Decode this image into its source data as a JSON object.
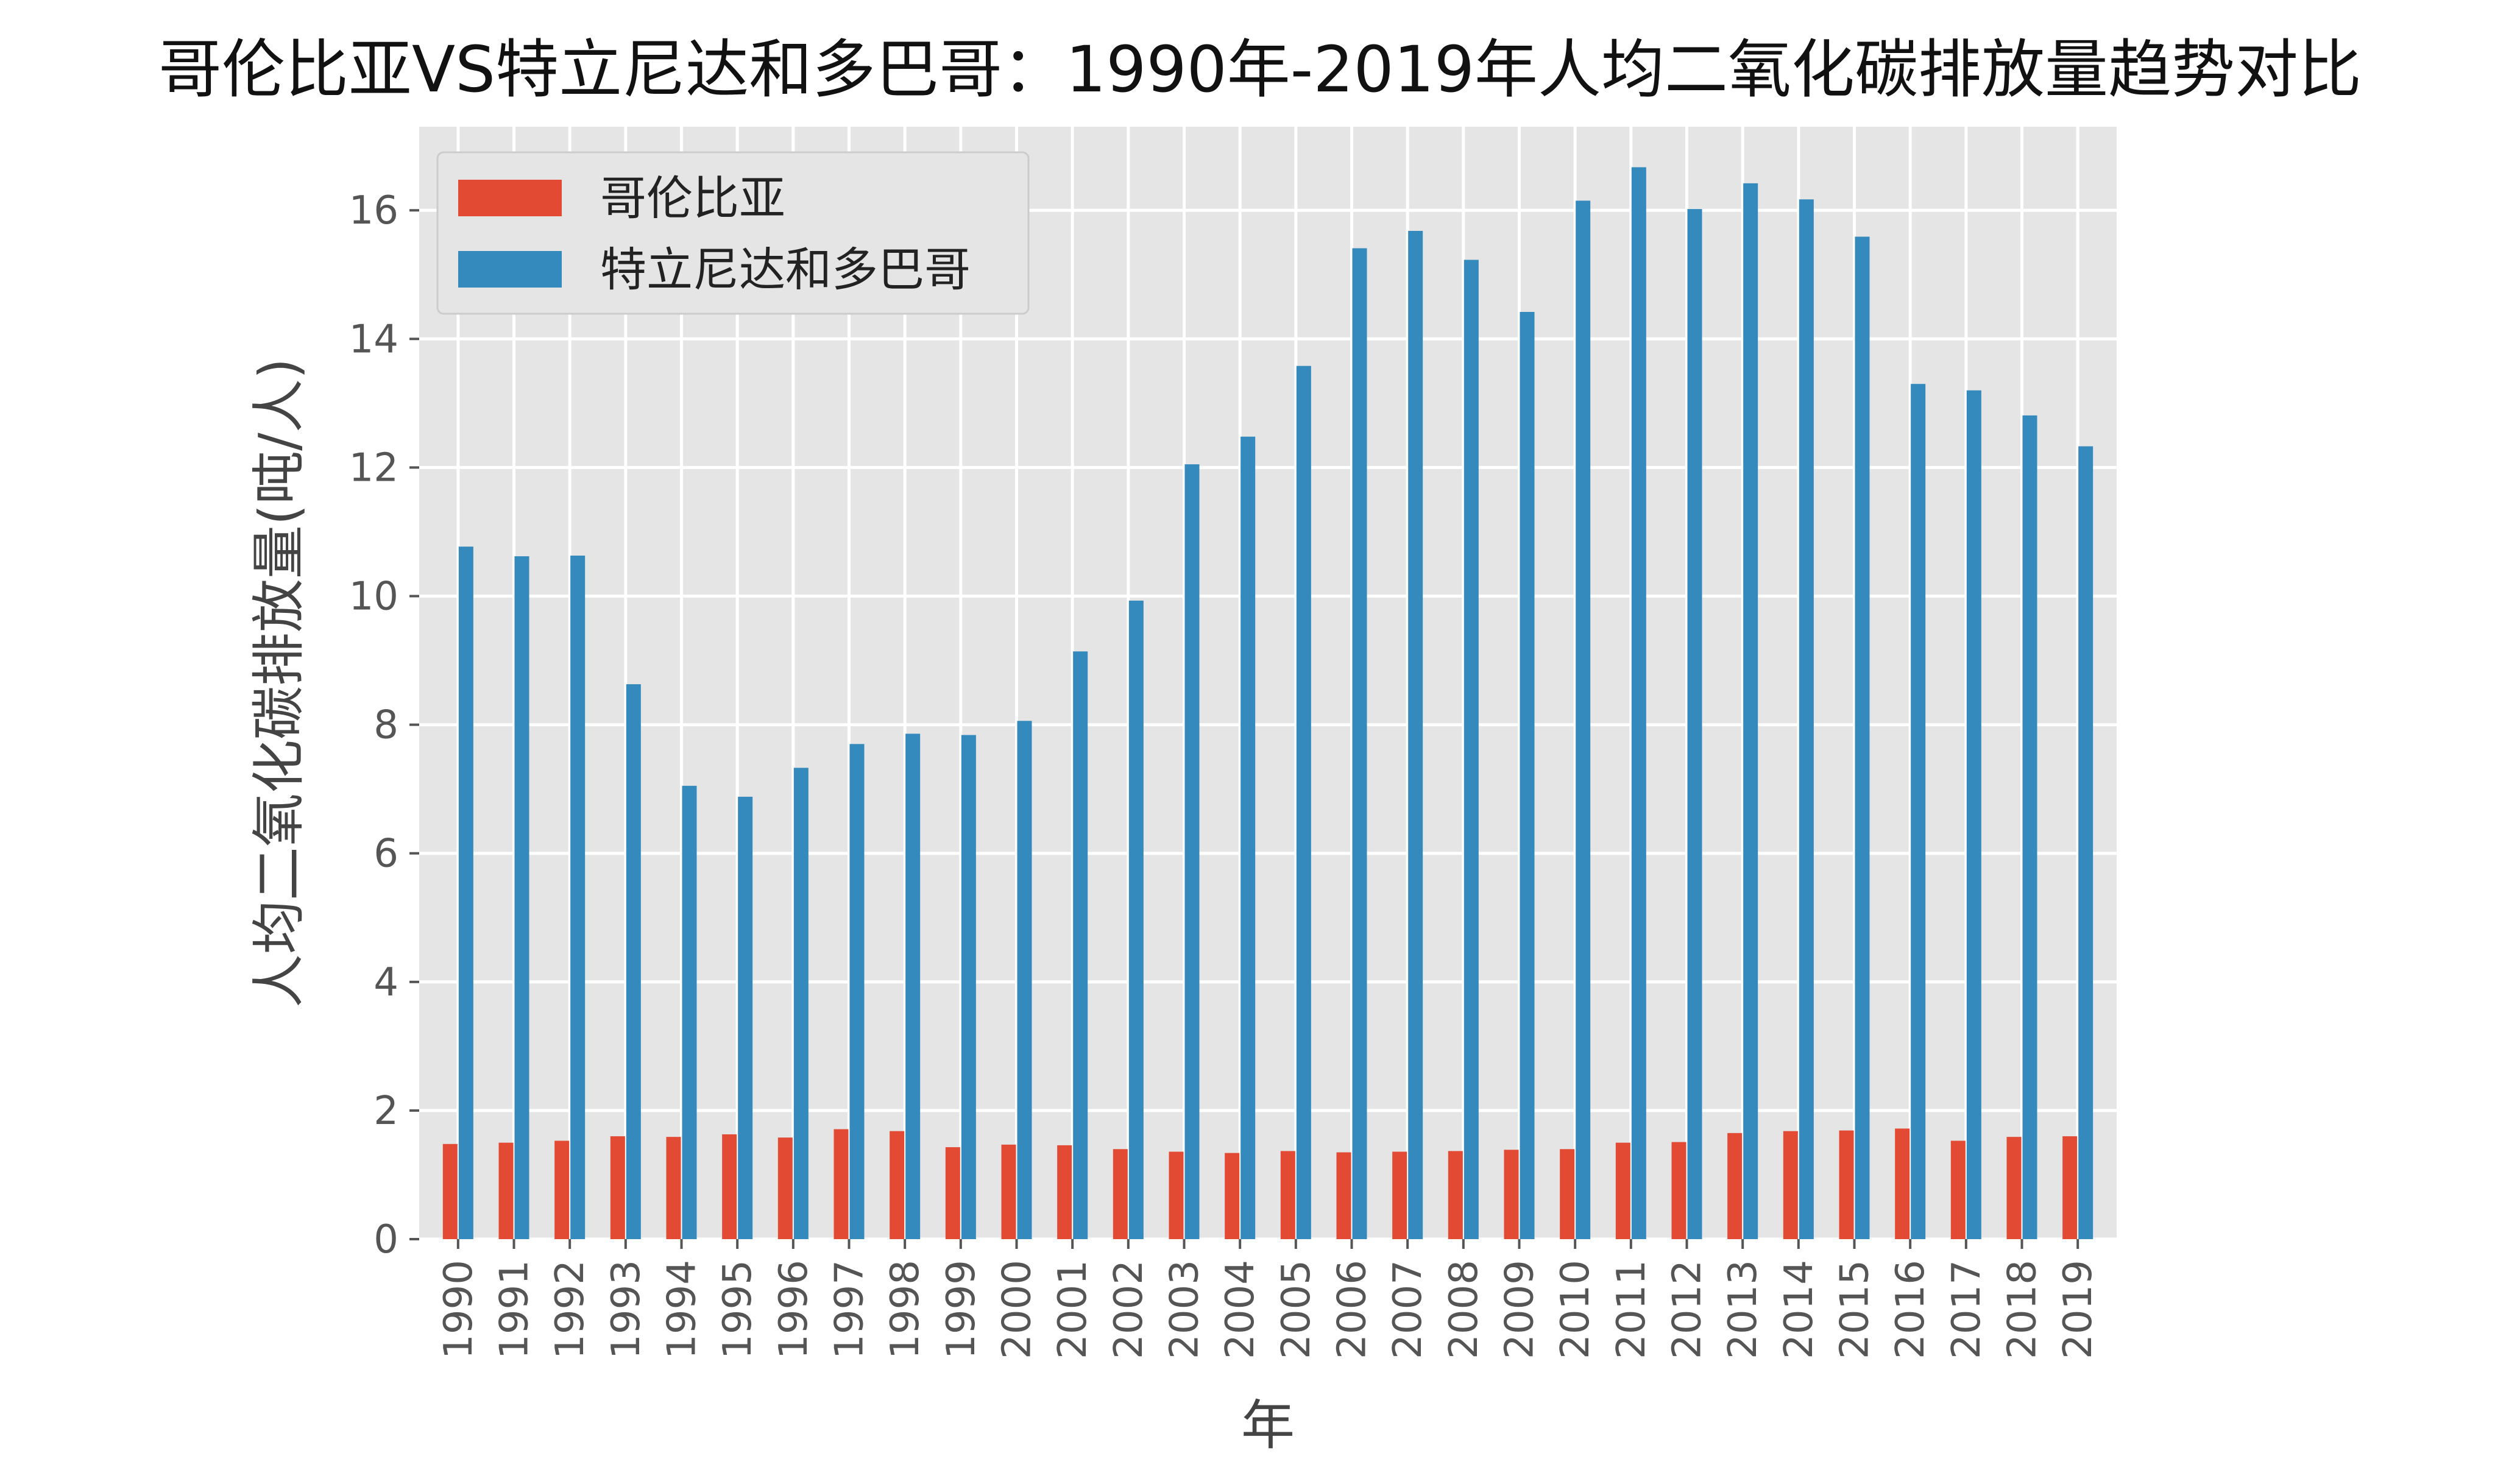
{
  "chart_data": {
    "type": "bar",
    "title": "哥伦比亚VS特立尼达和多巴哥：1990年-2019年人均二氧化碳排放量趋势对比",
    "xlabel": "年",
    "ylabel": "人均二氧化碳排放量(吨/人)",
    "ylim": [
      0,
      17.3
    ],
    "yticks": [
      0,
      2,
      4,
      6,
      8,
      10,
      12,
      14,
      16
    ],
    "grid": true,
    "legend_position": "top-left",
    "categories": [
      "1990",
      "1991",
      "1992",
      "1993",
      "1994",
      "1995",
      "1996",
      "1997",
      "1998",
      "1999",
      "2000",
      "2001",
      "2002",
      "2003",
      "2004",
      "2005",
      "2006",
      "2007",
      "2008",
      "2009",
      "2010",
      "2011",
      "2012",
      "2013",
      "2014",
      "2015",
      "2016",
      "2017",
      "2018",
      "2019"
    ],
    "series": [
      {
        "name": "哥伦比亚",
        "color": "#E24A33",
        "values": [
          1.48,
          1.5,
          1.53,
          1.6,
          1.59,
          1.63,
          1.58,
          1.71,
          1.68,
          1.43,
          1.47,
          1.46,
          1.4,
          1.36,
          1.34,
          1.37,
          1.35,
          1.36,
          1.37,
          1.39,
          1.4,
          1.5,
          1.51,
          1.65,
          1.68,
          1.69,
          1.72,
          1.53,
          1.59,
          1.6
        ]
      },
      {
        "name": "特立尼达和多巴哥",
        "color": "#348ABD",
        "values": [
          10.77,
          10.62,
          10.63,
          8.63,
          7.05,
          6.88,
          7.33,
          7.7,
          7.86,
          7.84,
          8.06,
          9.14,
          9.93,
          12.05,
          12.48,
          13.58,
          15.41,
          15.68,
          15.23,
          14.42,
          16.15,
          16.67,
          16.02,
          16.42,
          16.17,
          15.59,
          13.3,
          13.2,
          12.81,
          12.33
        ]
      }
    ]
  },
  "style": {
    "plot_background": "#E5E5E5",
    "grid_color": "#FFFFFF",
    "tick_color": "#555555"
  }
}
